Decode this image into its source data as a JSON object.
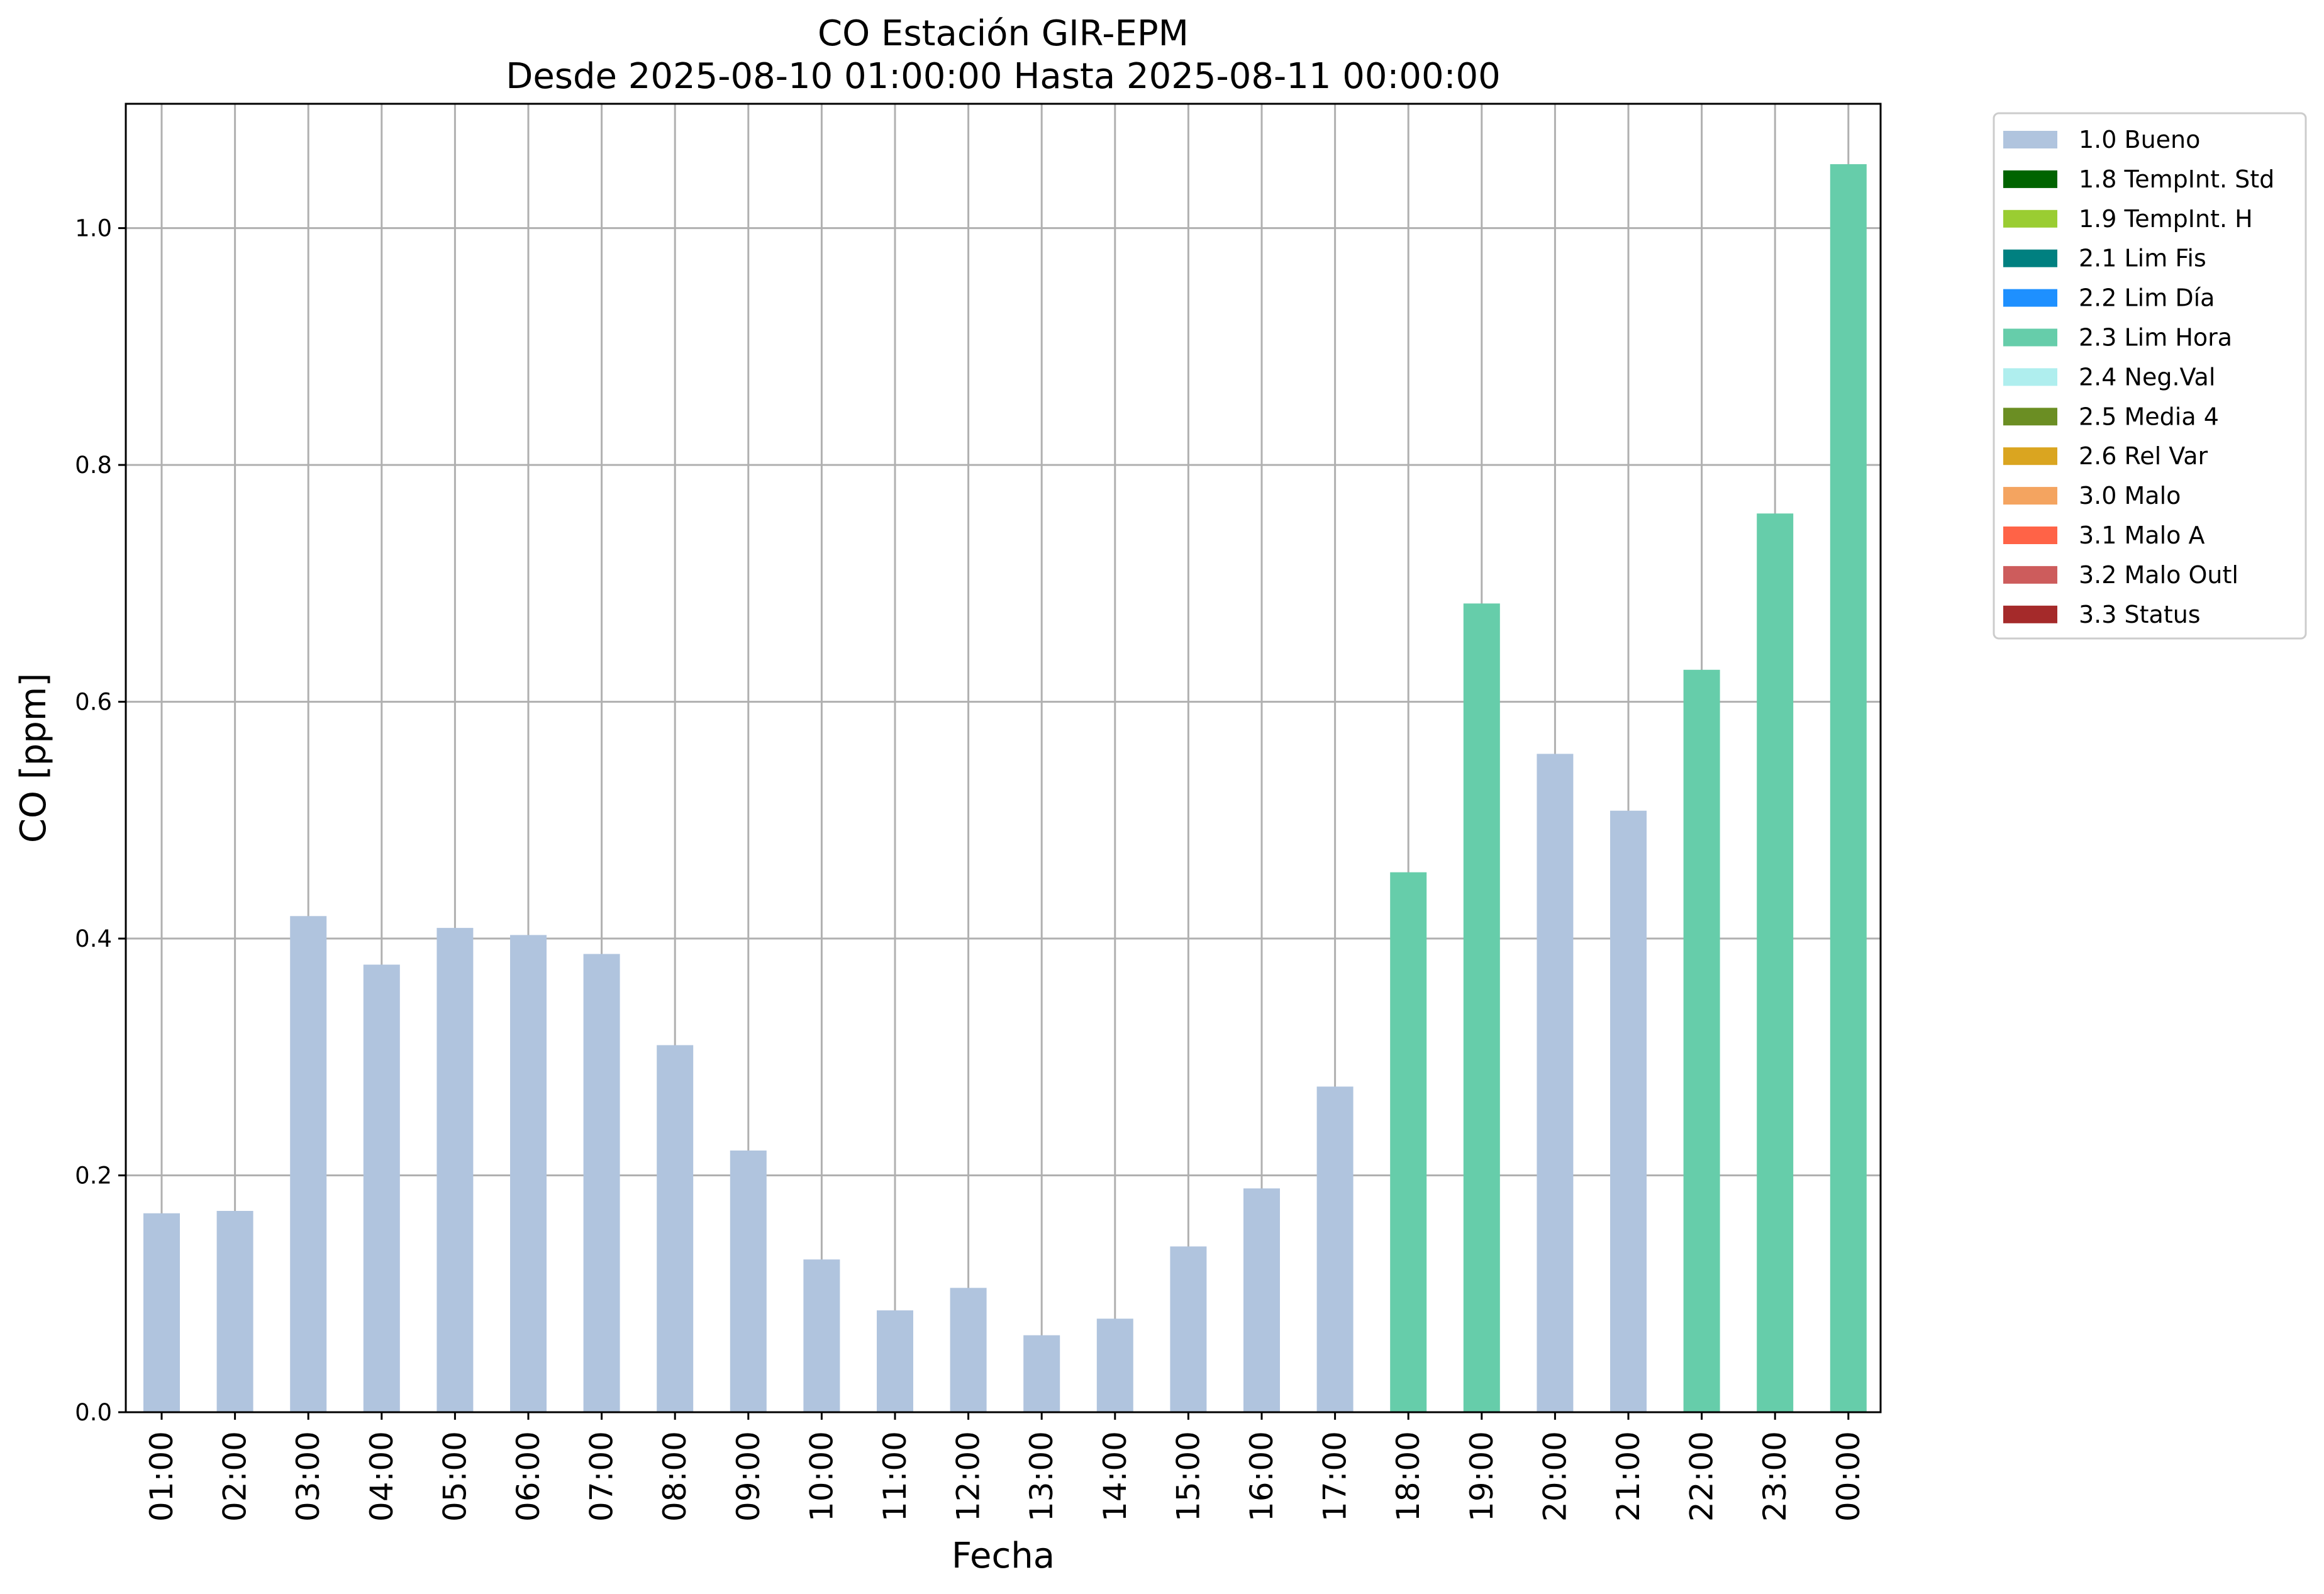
{
  "chart_data": {
    "type": "bar",
    "title": "CO Estación GIR-EPM",
    "subtitle": "Desde 2025-08-10 01:00:00 Hasta 2025-08-11 00:00:00",
    "xlabel": "Fecha",
    "ylabel": "CO [ppm]",
    "ylim": [
      0,
      1.105
    ],
    "yticks": [
      "0.0",
      "0.2",
      "0.4",
      "0.6",
      "0.8",
      "1.0"
    ],
    "ytick_values": [
      0,
      0.2,
      0.4,
      0.6,
      0.8,
      1.0
    ],
    "grid": true,
    "legend_position": "outside-right-top",
    "categories": [
      "01:00",
      "02:00",
      "03:00",
      "04:00",
      "05:00",
      "06:00",
      "07:00",
      "08:00",
      "09:00",
      "10:00",
      "11:00",
      "12:00",
      "13:00",
      "14:00",
      "15:00",
      "16:00",
      "17:00",
      "18:00",
      "19:00",
      "20:00",
      "21:00",
      "22:00",
      "23:00",
      "00:00"
    ],
    "values": [
      0.168,
      0.17,
      0.419,
      0.378,
      0.409,
      0.403,
      0.387,
      0.31,
      0.221,
      0.129,
      0.086,
      0.105,
      0.065,
      0.079,
      0.14,
      0.189,
      0.275,
      0.456,
      0.683,
      0.556,
      0.508,
      0.627,
      0.759,
      1.054
    ],
    "flags": [
      "1.0 Bueno",
      "1.0 Bueno",
      "1.0 Bueno",
      "1.0 Bueno",
      "1.0 Bueno",
      "1.0 Bueno",
      "1.0 Bueno",
      "1.0 Bueno",
      "1.0 Bueno",
      "1.0 Bueno",
      "1.0 Bueno",
      "1.0 Bueno",
      "1.0 Bueno",
      "1.0 Bueno",
      "1.0 Bueno",
      "1.0 Bueno",
      "1.0 Bueno",
      "2.3 Lim Hora",
      "2.3 Lim Hora",
      "1.0 Bueno",
      "1.0 Bueno",
      "2.3 Lim Hora",
      "2.3 Lim Hora",
      "2.3 Lim Hora"
    ],
    "legend": [
      {
        "label": "1.0 Bueno",
        "color": "#b0c4de"
      },
      {
        "label": "1.8 TempInt. Std",
        "color": "#006400"
      },
      {
        "label": "1.9 TempInt. H",
        "color": "#9acd32"
      },
      {
        "label": "2.1 Lim Fis",
        "color": "#008080"
      },
      {
        "label": "2.2 Lim Día",
        "color": "#1e90ff"
      },
      {
        "label": "2.3 Lim Hora",
        "color": "#66cdaa"
      },
      {
        "label": "2.4 Neg.Val",
        "color": "#afeeee"
      },
      {
        "label": "2.5 Media 4",
        "color": "#6b8e23"
      },
      {
        "label": "2.6 Rel Var",
        "color": "#daa520"
      },
      {
        "label": "3.0 Malo",
        "color": "#f4a460"
      },
      {
        "label": "3.1 Malo A",
        "color": "#ff6347"
      },
      {
        "label": "3.2 Malo Outl",
        "color": "#cd5c5c"
      },
      {
        "label": "3.3 Status",
        "color": "#a52a2a"
      }
    ]
  }
}
